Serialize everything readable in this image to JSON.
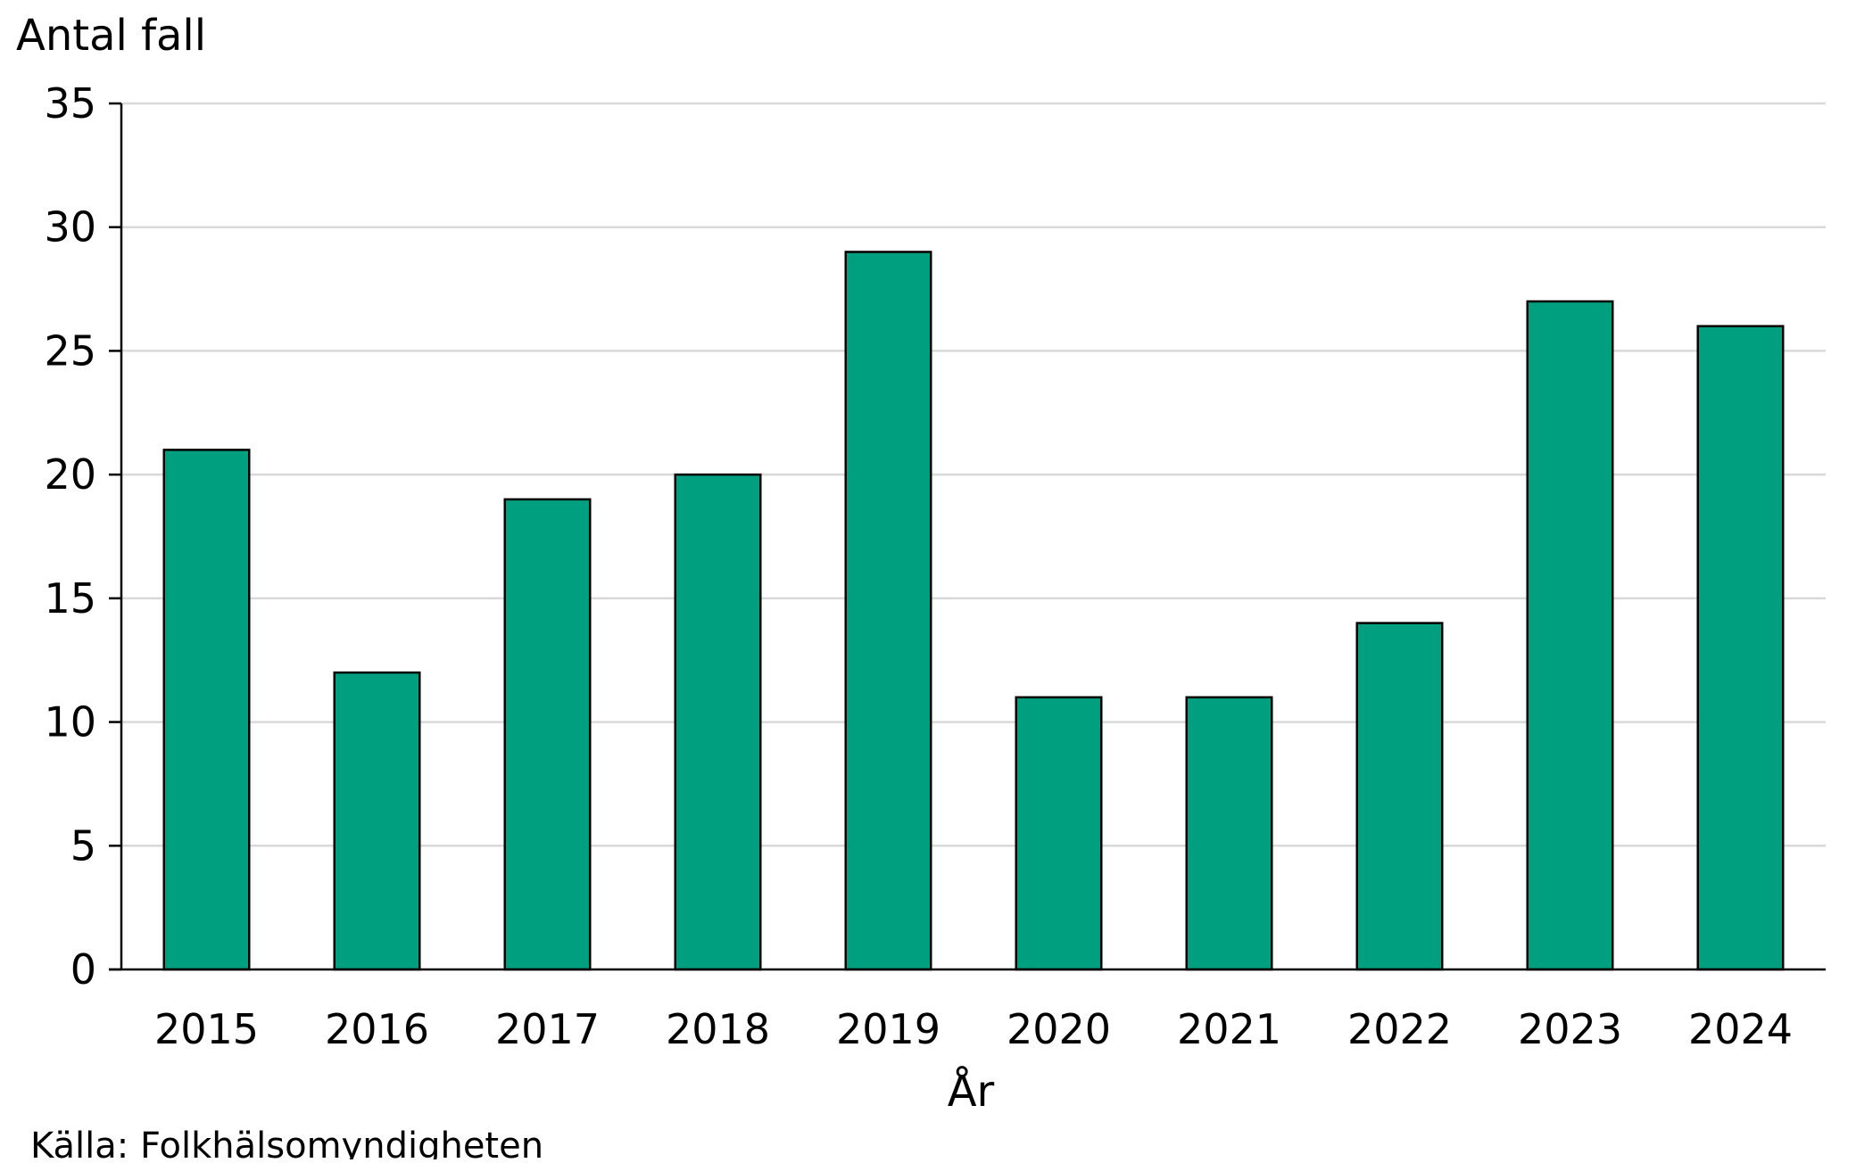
{
  "chart_data": {
    "type": "bar",
    "categories": [
      "2015",
      "2016",
      "2017",
      "2018",
      "2019",
      "2020",
      "2021",
      "2022",
      "2023",
      "2024"
    ],
    "values": [
      21,
      12,
      19,
      20,
      29,
      11,
      11,
      14,
      27,
      26
    ],
    "ylabel": "Antal fall",
    "xlabel": "År",
    "ylim": [
      0,
      35
    ],
    "yticks": [
      0,
      5,
      10,
      15,
      20,
      25,
      30,
      35
    ],
    "grid": "horizontal",
    "legend": "none",
    "bar_color": "#009F7F",
    "bar_edge_color": "#000000",
    "grid_color": "#D9D9D9"
  },
  "source_note": "Källa: Folkhälsomyndigheten"
}
